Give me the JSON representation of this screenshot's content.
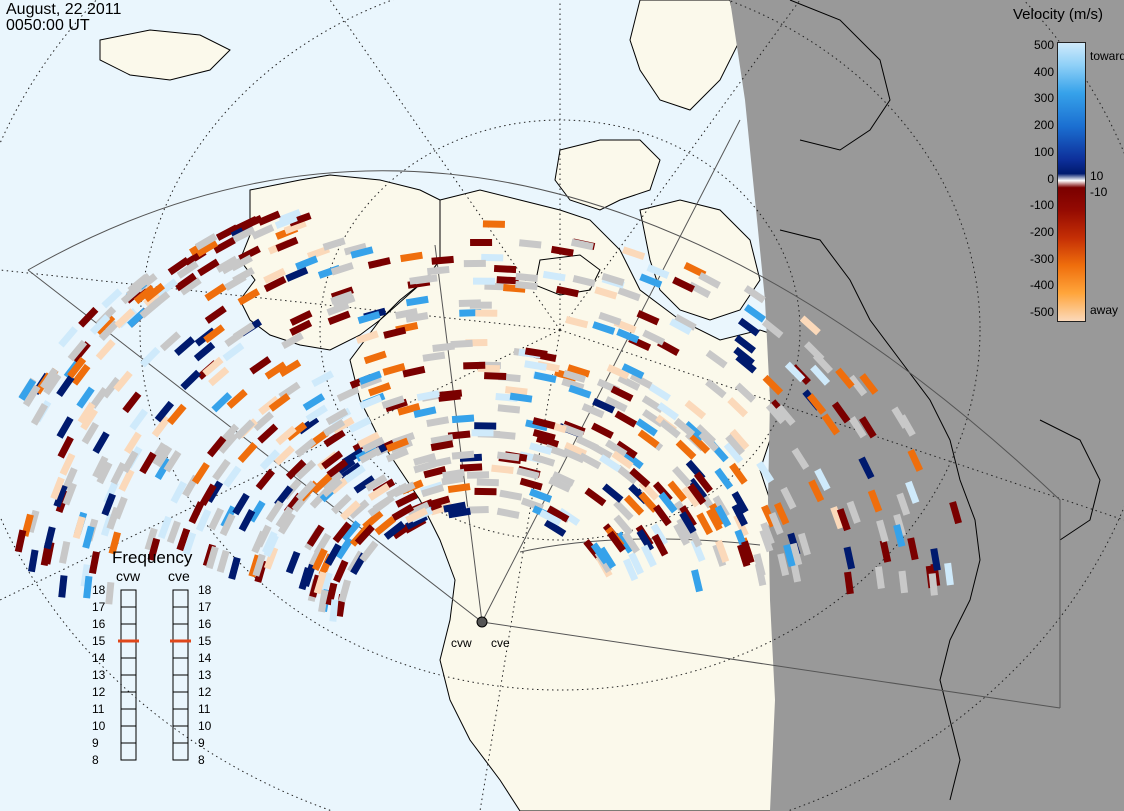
{
  "header": {
    "date": "August, 22 2011",
    "time": "0050:00 UT"
  },
  "colorbar": {
    "title": "Velocity (m/s)",
    "ticks": [
      "500",
      "400",
      "300",
      "200",
      "100",
      "0",
      "-100",
      "-200",
      "-300",
      "-400",
      "-500"
    ],
    "small_ticks": [
      "10",
      "-10"
    ],
    "toward_label": "toward",
    "away_label": "away",
    "colors": {
      "toward_light": "#cfeafb",
      "toward_mid": "#36a2ea",
      "toward_dark": "#001a6e",
      "away_dark": "#7a0000",
      "away_mid": "#ef6e0c",
      "away_light": "#fbd9ba",
      "ground_scatter": "#c8c8c8"
    }
  },
  "frequency": {
    "title": "Frequency",
    "left_station": "cvw",
    "right_station": "cve",
    "levels": [
      "18",
      "17",
      "16",
      "15",
      "14",
      "13",
      "12",
      "11",
      "10",
      "9",
      "8"
    ],
    "cvw_value": 15,
    "cve_value": 15,
    "marker_color": "#e0471a"
  },
  "sites": {
    "cvw_label": "cvw",
    "cve_label": "cve"
  },
  "map": {
    "ocean_color": "#eaf6fd",
    "land_color": "#fbf9eb",
    "night_color": "#999999",
    "coast_color": "#000000"
  }
}
